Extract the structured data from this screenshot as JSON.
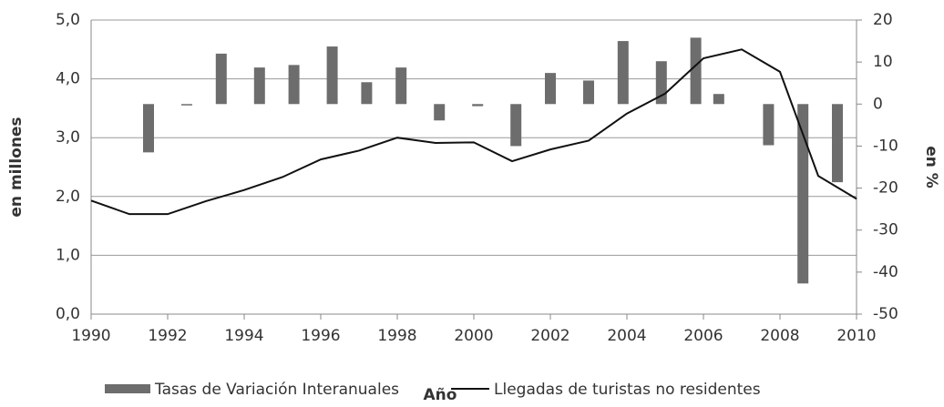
{
  "chart_data": {
    "type": "bar_line",
    "x_label": "Año",
    "y_label": "en millones",
    "y2_label": "en %",
    "xlim": [
      1990,
      2010
    ],
    "xticks": [
      1990,
      1992,
      1994,
      1996,
      1998,
      2000,
      2002,
      2004,
      2006,
      2008,
      2010
    ],
    "ylim": [
      0,
      5
    ],
    "yticks": [
      {
        "value": 0,
        "label": "0,0"
      },
      {
        "value": 1,
        "label": "1,0"
      },
      {
        "value": 2,
        "label": "2,0"
      },
      {
        "value": 3,
        "label": "3,0"
      },
      {
        "value": 4,
        "label": "4,0"
      },
      {
        "value": 5,
        "label": "5,0"
      }
    ],
    "y2lim": [
      -50,
      20
    ],
    "y2ticks": [
      -50,
      -40,
      -30,
      -20,
      -10,
      0,
      10,
      20
    ],
    "grid": true,
    "series": [
      {
        "name": "Tasas de Variación Interanuales",
        "type": "bar",
        "axis": "y2",
        "color": "#6d6d6d",
        "x": [
          1991.5,
          1992.5,
          1993.4,
          1994.4,
          1995.3,
          1996.3,
          1997.2,
          1998.1,
          1999.1,
          2000.1,
          2001.1,
          2002.0,
          2003.0,
          2003.9,
          2004.9,
          2005.8,
          2006.4,
          2007.7,
          2008.6,
          2009.5
        ],
        "values": [
          -11.5,
          -0.3,
          12,
          8.7,
          9.3,
          13.7,
          5.2,
          8.7,
          -3.9,
          -0.5,
          -10,
          7.4,
          5.6,
          15,
          10.2,
          15.8,
          2.4,
          -9.8,
          -42.7,
          -18.6
        ]
      },
      {
        "name": "Llegadas de turistas no residentes",
        "type": "line",
        "axis": "y",
        "color": "#111111",
        "x": [
          1990,
          1991,
          1992,
          1993,
          1994,
          1995,
          1996,
          1997,
          1998,
          1999,
          2000,
          2001,
          2002,
          2003,
          2004,
          2005,
          2006,
          2007,
          2008,
          2009,
          2010
        ],
        "values": [
          1.93,
          1.7,
          1.7,
          1.92,
          2.11,
          2.33,
          2.63,
          2.78,
          3.0,
          2.91,
          2.92,
          2.6,
          2.8,
          2.95,
          3.41,
          3.75,
          4.35,
          4.5,
          4.12,
          2.35,
          1.96
        ]
      }
    ]
  }
}
